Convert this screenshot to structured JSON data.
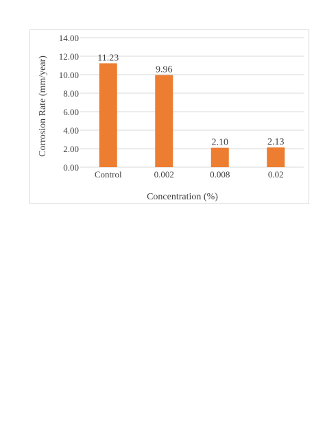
{
  "chart_data": {
    "type": "bar",
    "title": "",
    "xlabel": "Concentration (%)",
    "ylabel": "Corrosion Rate (mm/year)",
    "categories": [
      "Control",
      "0.002",
      "0.008",
      "0.02"
    ],
    "values": [
      11.23,
      9.96,
      2.1,
      2.13
    ],
    "data_labels": [
      "11.23",
      "9.96",
      "2.10",
      "2.13"
    ],
    "ylim": [
      0,
      14
    ],
    "yticks": [
      0,
      2,
      4,
      6,
      8,
      10,
      12,
      14
    ],
    "ytick_labels": [
      "0.00",
      "2.00",
      "4.00",
      "6.00",
      "8.00",
      "10.00",
      "12.00",
      "14.00"
    ],
    "grid": true,
    "legend": "none",
    "bar_color": "#ED7D31",
    "grid_color": "#D9D9D9"
  }
}
